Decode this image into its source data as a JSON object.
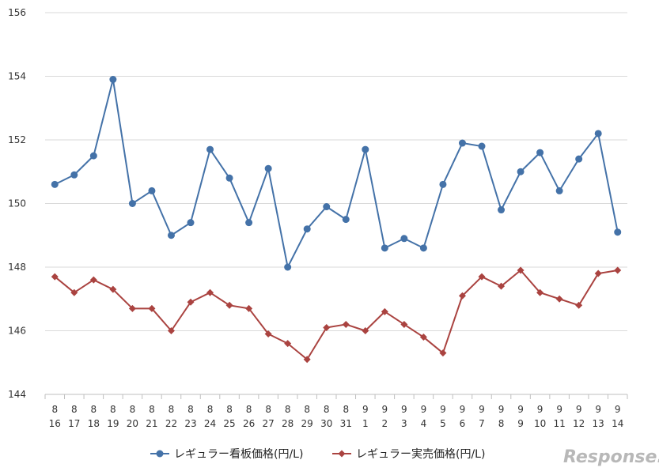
{
  "chart_data": {
    "type": "line",
    "title": "",
    "xlabel": "",
    "ylabel": "",
    "ylim": [
      144,
      156
    ],
    "yticks": [
      144,
      146,
      148,
      150,
      152,
      154,
      156
    ],
    "grid": true,
    "legend_position": "bottom",
    "categories": [
      {
        "month": "8",
        "day": "16"
      },
      {
        "month": "8",
        "day": "17"
      },
      {
        "month": "8",
        "day": "18"
      },
      {
        "month": "8",
        "day": "19"
      },
      {
        "month": "8",
        "day": "20"
      },
      {
        "month": "8",
        "day": "21"
      },
      {
        "month": "8",
        "day": "22"
      },
      {
        "month": "8",
        "day": "23"
      },
      {
        "month": "8",
        "day": "24"
      },
      {
        "month": "8",
        "day": "25"
      },
      {
        "month": "8",
        "day": "26"
      },
      {
        "month": "8",
        "day": "27"
      },
      {
        "month": "8",
        "day": "28"
      },
      {
        "month": "8",
        "day": "29"
      },
      {
        "month": "8",
        "day": "30"
      },
      {
        "month": "8",
        "day": "31"
      },
      {
        "month": "9",
        "day": "1"
      },
      {
        "month": "9",
        "day": "2"
      },
      {
        "month": "9",
        "day": "3"
      },
      {
        "month": "9",
        "day": "4"
      },
      {
        "month": "9",
        "day": "5"
      },
      {
        "month": "9",
        "day": "6"
      },
      {
        "month": "9",
        "day": "7"
      },
      {
        "month": "9",
        "day": "8"
      },
      {
        "month": "9",
        "day": "9"
      },
      {
        "month": "9",
        "day": "10"
      },
      {
        "month": "9",
        "day": "11"
      },
      {
        "month": "9",
        "day": "12"
      },
      {
        "month": "9",
        "day": "13"
      },
      {
        "month": "9",
        "day": "14"
      }
    ],
    "series": [
      {
        "name": "レギュラー看板価格(円/L)",
        "color": "#4472a8",
        "marker": "circle",
        "values": [
          150.6,
          150.9,
          151.5,
          153.9,
          150.0,
          150.4,
          149.0,
          149.4,
          151.7,
          150.8,
          149.4,
          151.1,
          148.0,
          149.2,
          149.9,
          149.5,
          151.7,
          148.6,
          148.9,
          148.6,
          150.6,
          151.9,
          151.8,
          149.8,
          151.0,
          151.6,
          150.4,
          151.4,
          152.2,
          149.1
        ]
      },
      {
        "name": "レギュラー実売価格(円/L)",
        "color": "#aa4340",
        "marker": "diamond",
        "values": [
          147.7,
          147.2,
          147.6,
          147.3,
          146.7,
          146.7,
          146.0,
          146.9,
          147.2,
          146.8,
          146.7,
          145.9,
          145.6,
          145.1,
          146.1,
          146.2,
          146.0,
          146.6,
          146.2,
          145.8,
          145.3,
          147.1,
          147.7,
          147.4,
          147.9,
          147.2,
          147.0,
          146.8,
          147.8,
          147.9
        ]
      }
    ]
  },
  "watermark": {
    "text": "Response."
  }
}
